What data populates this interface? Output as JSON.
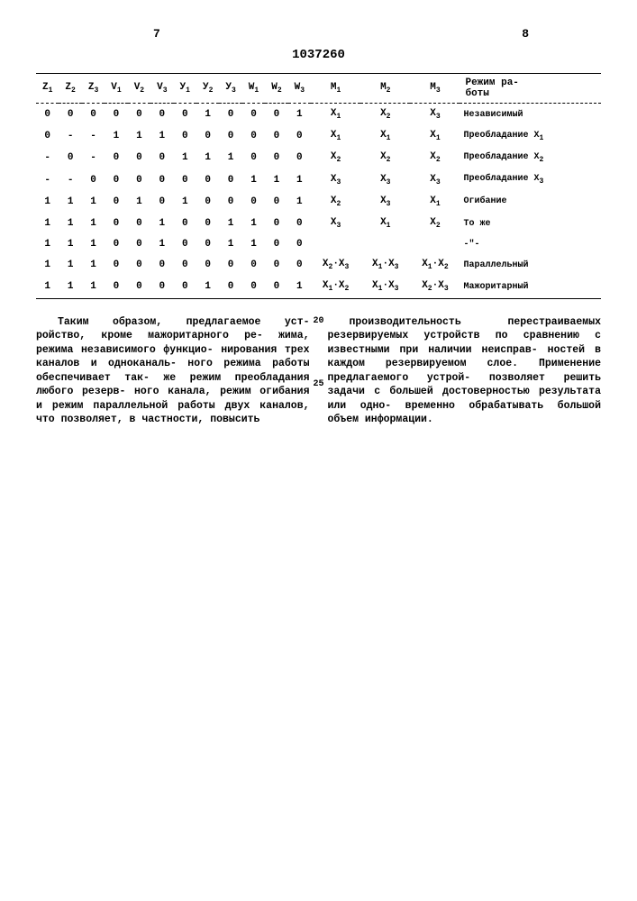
{
  "page": {
    "left_number": "7",
    "right_number": "8",
    "doc_number": "1037260"
  },
  "table": {
    "headers": [
      "Z₁",
      "Z₂",
      "Z₃",
      "V₁",
      "V₂",
      "V₃",
      "У₁",
      "У₂",
      "У₃",
      "W₁",
      "W₂",
      "W₃",
      "M₁",
      "M₂",
      "M₃",
      "Режим ра-\nботы"
    ],
    "rows": [
      {
        "c": [
          "0",
          "0",
          "0",
          "0",
          "0",
          "0",
          "0",
          "1",
          "0",
          "0",
          "0",
          "1",
          "X₁",
          "X₂",
          "X₃"
        ],
        "mode": "Независимый"
      },
      {
        "c": [
          "0",
          "-",
          "-",
          "1",
          "1",
          "1",
          "0",
          "0",
          "0",
          "0",
          "0",
          "0",
          "X₁",
          "X₁",
          "X₁"
        ],
        "mode": "Преобладание X₁"
      },
      {
        "c": [
          "-",
          "0",
          "-",
          "0",
          "0",
          "0",
          "1",
          "1",
          "1",
          "0",
          "0",
          "0",
          "X₂",
          "X₂",
          "X₂"
        ],
        "mode": "Преобладание X₂"
      },
      {
        "c": [
          "-",
          "-",
          "0",
          "0",
          "0",
          "0",
          "0",
          "0",
          "0",
          "1",
          "1",
          "1",
          "X₃",
          "X₃",
          "X₃"
        ],
        "mode": "Преобладание X₃"
      },
      {
        "c": [
          "1",
          "1",
          "1",
          "0",
          "1",
          "0",
          "1",
          "0",
          "0",
          "0",
          "0",
          "1",
          "X₂",
          "X₃",
          "X₁"
        ],
        "mode": "Огибание"
      },
      {
        "c": [
          "1",
          "1",
          "1",
          "0",
          "0",
          "1",
          "0",
          "0",
          "1",
          "1",
          "0",
          "0",
          "X₃",
          "X₁",
          "X₂"
        ],
        "mode": "То же"
      },
      {
        "c": [
          "1",
          "1",
          "1",
          "0",
          "0",
          "1",
          "0",
          "0",
          "1",
          "1",
          "0",
          "0",
          "",
          "",
          ""
        ],
        "mode": "-\"-"
      },
      {
        "c": [
          "1",
          "1",
          "1",
          "0",
          "0",
          "0",
          "0",
          "0",
          "0",
          "0",
          "0",
          "0",
          "X₂·X₃",
          "X₁·X₃",
          "X₁·X₂"
        ],
        "mode": "Параллельный"
      },
      {
        "c": [
          "1",
          "1",
          "1",
          "0",
          "0",
          "0",
          "0",
          "1",
          "0",
          "0",
          "0",
          "1",
          "X₁·X₂",
          "X₁·X₃",
          "X₂·X₃"
        ],
        "mode": "Мажоритарный"
      }
    ]
  },
  "line_numbers": {
    "a": "20",
    "b": "25"
  },
  "body": {
    "left": "Таким образом, предлагаемое уст-\nройство, кроме мажоритарного ре-\nжима, режима независимого функцио-\nнирования трех каналов и одноканаль-\nного режима работы обеспечивает так-\nже режим преобладания любого резерв-\nного канала, режим огибания и режим\nпараллельной работы двух каналов,\nчто позволяет, в частности, повысить",
    "right": "производительность перестраиваемых\nрезервируемых устройств по сравнению\nс известными при наличии неисправ-\nностей в каждом резервируемом слое.\nПрименение предлагаемого устрой-\nпозволяет решить задачи с большей\nдостоверностью результата или одно-\nвременно обрабатывать большой объем\nинформации."
  }
}
